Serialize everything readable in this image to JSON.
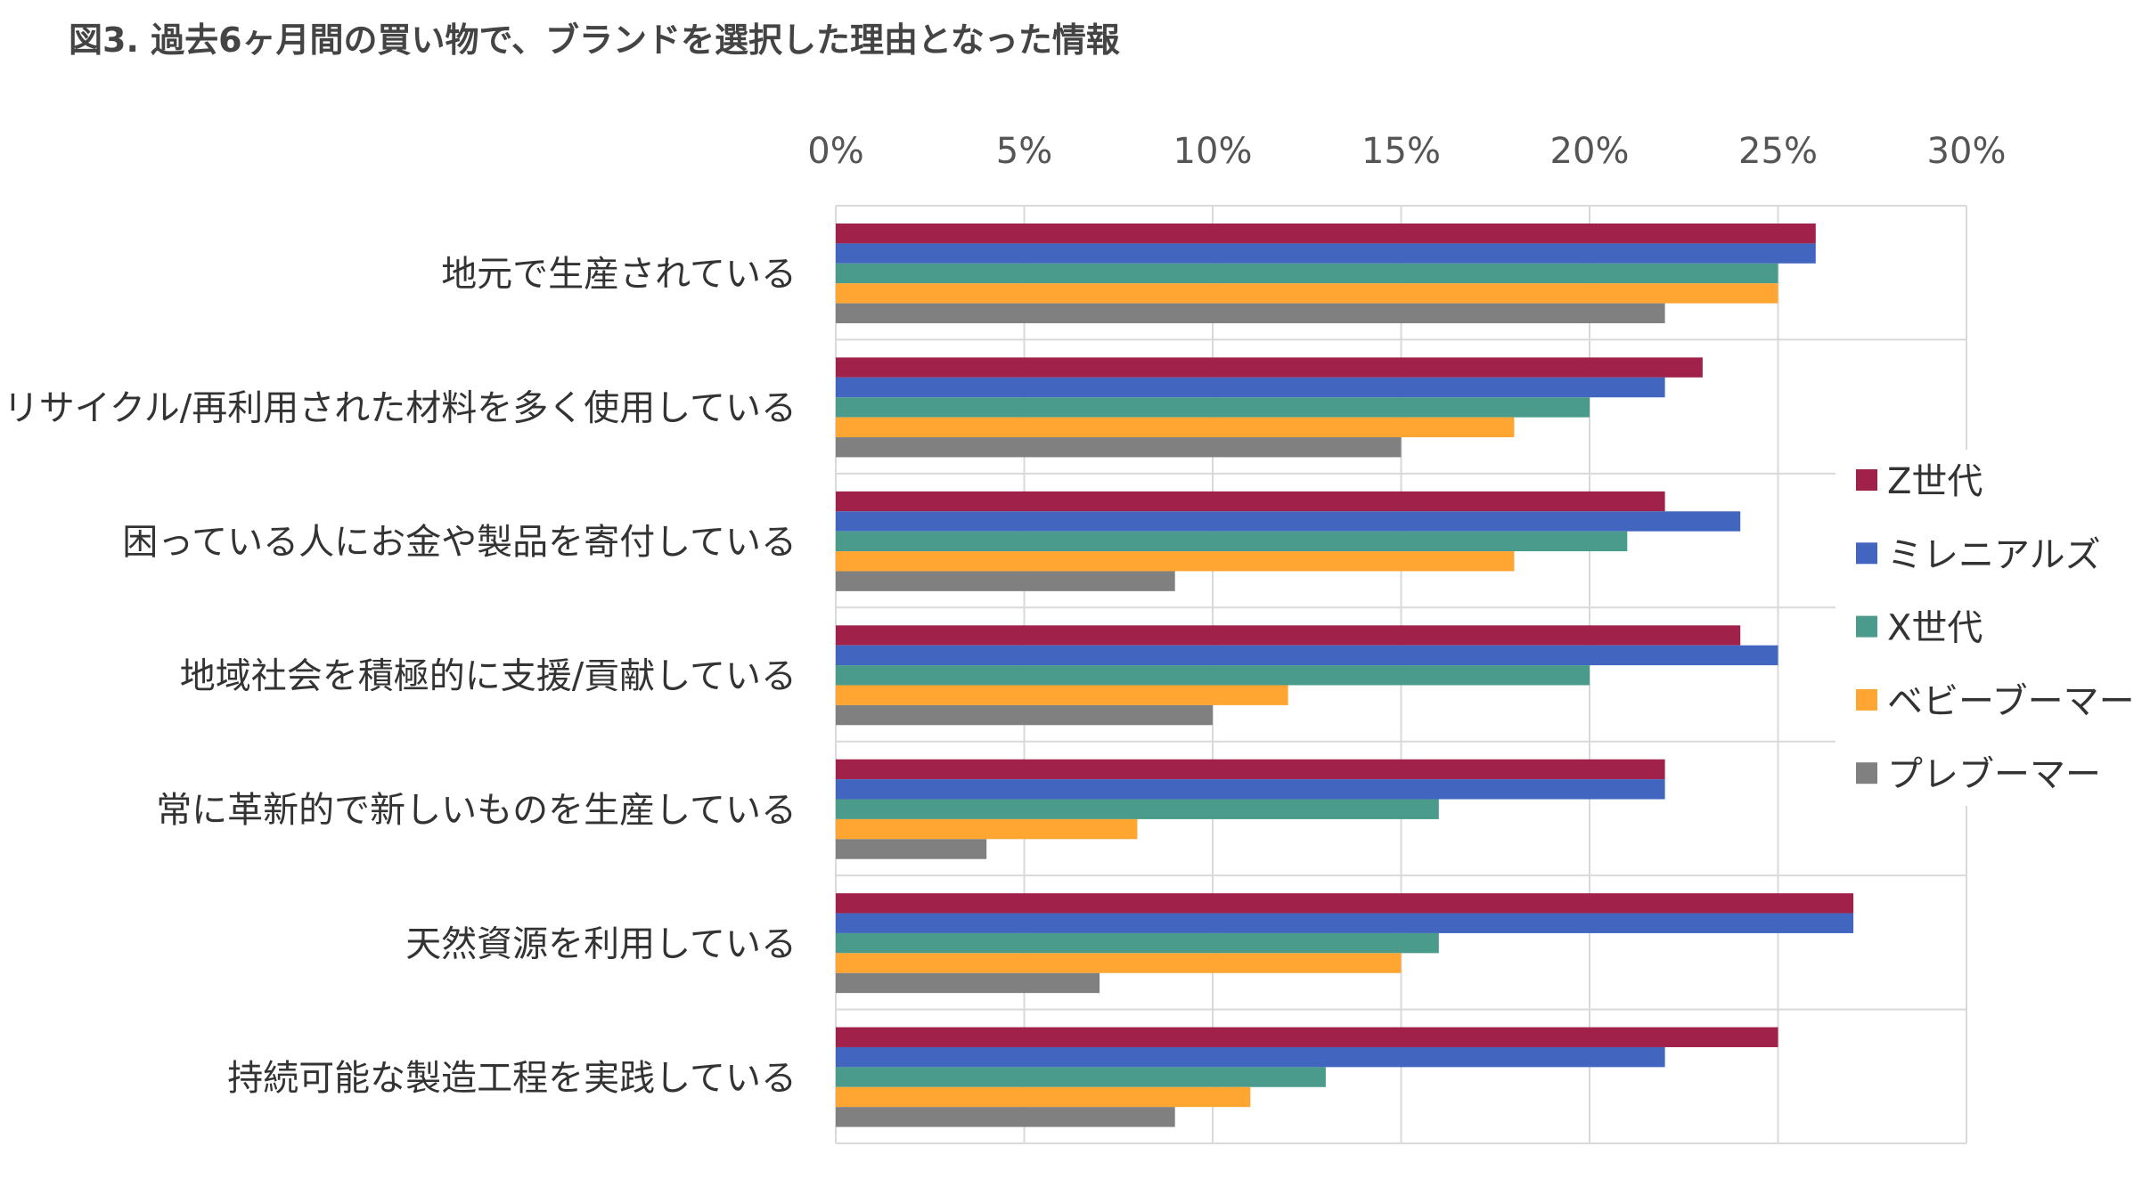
{
  "chart_data": {
    "type": "bar",
    "orientation": "horizontal",
    "title": "図3. 過去6ヶ月間の買い物で、ブランドを選択した理由となった情報",
    "xlabel": "",
    "ylabel": "",
    "xlim": [
      0,
      30
    ],
    "x_ticks": [
      "0%",
      "5%",
      "10%",
      "15%",
      "20%",
      "25%",
      "30%"
    ],
    "x_tick_values": [
      0,
      5,
      10,
      15,
      20,
      25,
      30
    ],
    "grid": true,
    "legend_position": "right",
    "categories": [
      "地元で生産されている",
      "リサイクル/再利用された材料を多く使用している",
      "困っている人にお金や製品を寄付している",
      "地域社会を積極的に支援/貢献している",
      "常に革新的で新しいものを生産している",
      "天然資源を利用している",
      "持続可能な製造工程を実践している"
    ],
    "series": [
      {
        "name": "Z世代",
        "color": "#A0224A",
        "values": [
          26,
          23,
          22,
          24,
          22,
          27,
          25
        ]
      },
      {
        "name": "ミレニアルズ",
        "color": "#4266C0",
        "values": [
          26,
          22,
          24,
          25,
          22,
          27,
          22
        ]
      },
      {
        "name": "X世代",
        "color": "#4A9B8C",
        "values": [
          25,
          20,
          21,
          20,
          16,
          16,
          13
        ]
      },
      {
        "name": "ベビーブーマー",
        "color": "#FFA532",
        "values": [
          25,
          18,
          18,
          12,
          8,
          15,
          11
        ]
      },
      {
        "name": "プレブーマー",
        "color": "#808080",
        "values": [
          22,
          15,
          9,
          10,
          4,
          7,
          9
        ]
      }
    ],
    "unit": "%"
  }
}
